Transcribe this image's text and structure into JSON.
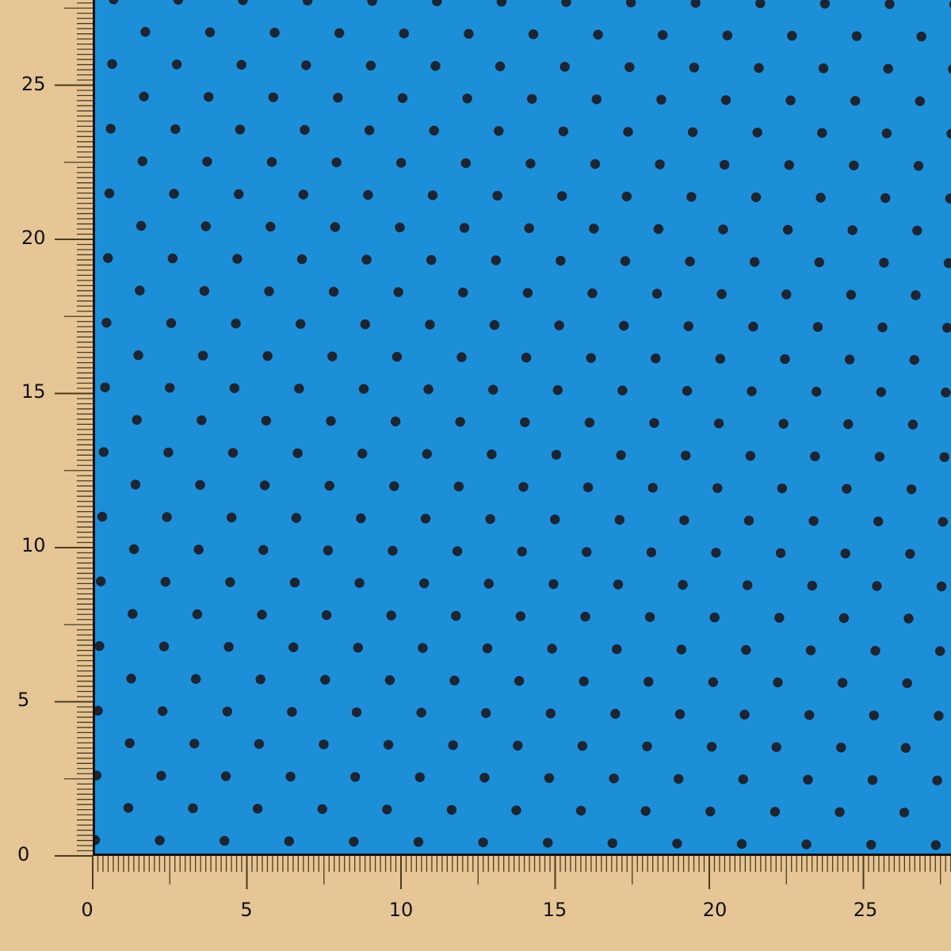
{
  "colors": {
    "background": "#E6C596",
    "fabric": "#1D8FD8",
    "dot": "#1B2533",
    "ruler": "#4A3B1F"
  },
  "ruler": {
    "y_labels": [
      "0",
      "5",
      "10",
      "15",
      "20",
      "25"
    ],
    "x_labels": [
      "0",
      "5",
      "10",
      "15",
      "20",
      "25"
    ]
  }
}
